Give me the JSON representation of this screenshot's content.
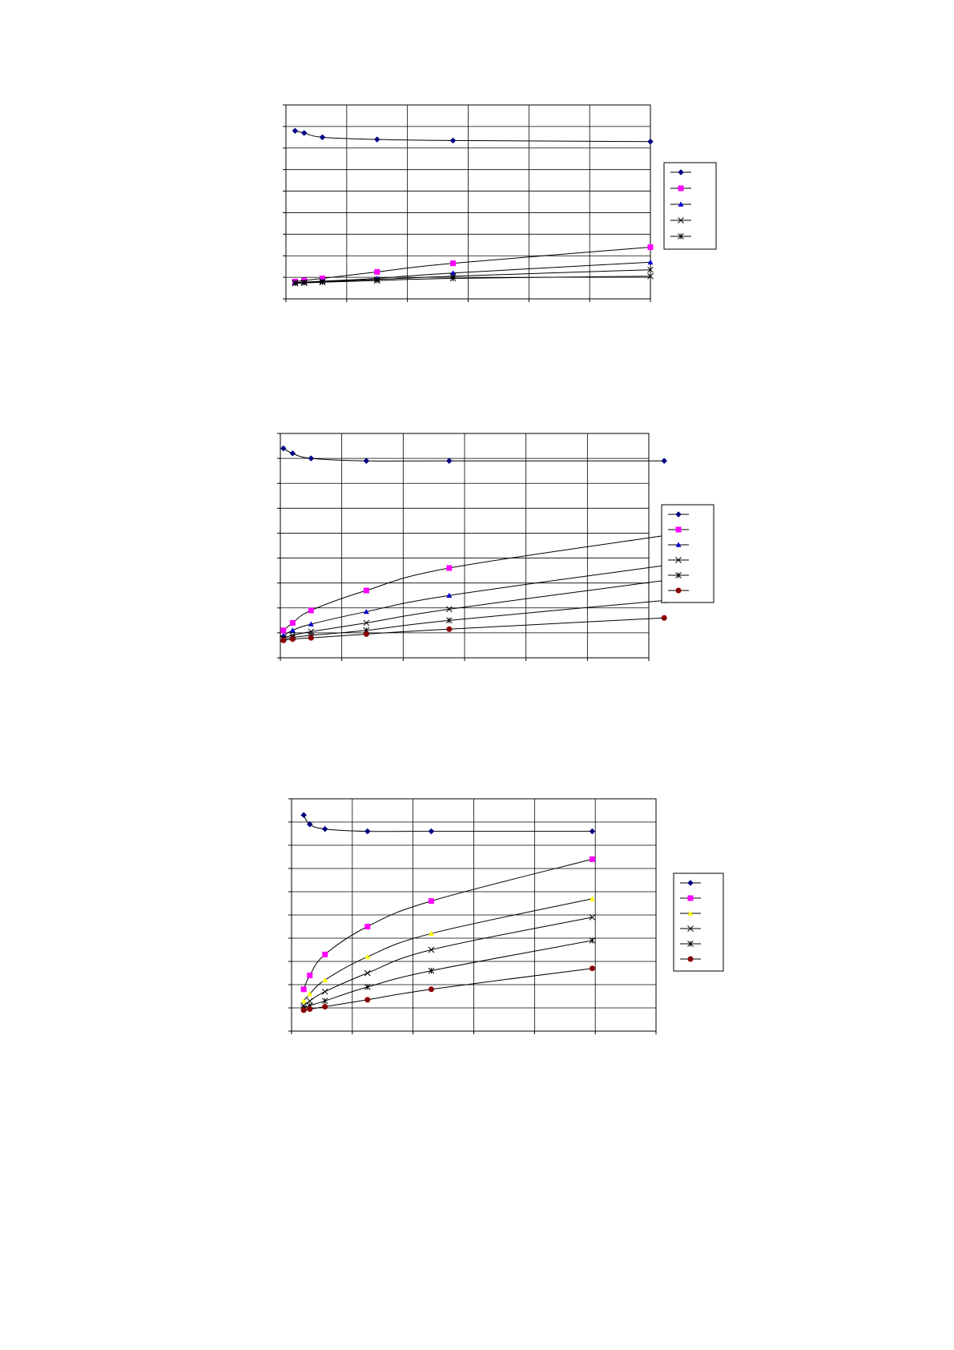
{
  "page": {
    "footer": ""
  },
  "chart_data": [
    {
      "type": "line",
      "title": "",
      "xlabel": "",
      "ylabel": "",
      "xlim": [
        0,
        120
      ],
      "ylim": [
        0,
        9
      ],
      "grid": true,
      "legend_position": "right",
      "series": [
        {
          "marker": "diamond",
          "color": "#000080",
          "x": [
            3,
            6,
            12,
            30,
            55,
            120
          ],
          "y": [
            7.8,
            7.7,
            7.5,
            7.4,
            7.35,
            7.3
          ]
        },
        {
          "marker": "square",
          "color": "#FF00FF",
          "x": [
            3,
            6,
            12,
            30,
            55,
            120
          ],
          "y": [
            0.8,
            0.85,
            0.95,
            1.25,
            1.65,
            2.4
          ]
        },
        {
          "marker": "triangle",
          "color": "#0000CD",
          "x": [
            3,
            6,
            12,
            30,
            55,
            120
          ],
          "y": [
            0.75,
            0.78,
            0.82,
            0.95,
            1.2,
            1.7
          ]
        },
        {
          "marker": "x",
          "color": "#000000",
          "x": [
            3,
            6,
            12,
            30,
            55,
            120
          ],
          "y": [
            0.75,
            0.77,
            0.8,
            0.9,
            1.05,
            1.35
          ]
        },
        {
          "marker": "star",
          "color": "#000000",
          "x": [
            3,
            6,
            12,
            30,
            55,
            120
          ],
          "y": [
            0.72,
            0.74,
            0.77,
            0.85,
            0.95,
            1.05
          ]
        }
      ]
    },
    {
      "type": "line",
      "title": "",
      "xlabel": "",
      "ylabel": "",
      "xlim": [
        0,
        120
      ],
      "ylim": [
        0,
        9
      ],
      "grid": true,
      "legend_position": "right",
      "series": [
        {
          "marker": "diamond",
          "color": "#000080",
          "x": [
            1,
            4,
            10,
            28,
            55,
            125
          ],
          "y": [
            8.4,
            8.2,
            8.0,
            7.9,
            7.9,
            7.9
          ]
        },
        {
          "marker": "square",
          "color": "#FF00FF",
          "x": [
            1,
            4,
            10,
            28,
            55,
            125
          ],
          "y": [
            1.1,
            1.4,
            1.9,
            2.7,
            3.6,
            4.9
          ]
        },
        {
          "marker": "triangle",
          "color": "#0000CD",
          "x": [
            1,
            4,
            10,
            28,
            55,
            125
          ],
          "y": [
            0.9,
            1.1,
            1.35,
            1.85,
            2.5,
            3.7
          ]
        },
        {
          "marker": "x",
          "color": "#000000",
          "x": [
            1,
            4,
            10,
            28,
            55,
            125
          ],
          "y": [
            0.8,
            0.9,
            1.05,
            1.4,
            1.95,
            3.1
          ]
        },
        {
          "marker": "star",
          "color": "#000000",
          "x": [
            1,
            4,
            10,
            28,
            55,
            125
          ],
          "y": [
            0.75,
            0.82,
            0.9,
            1.1,
            1.5,
            2.3
          ]
        },
        {
          "marker": "circle",
          "color": "#8B0000",
          "x": [
            1,
            4,
            10,
            28,
            55,
            125
          ],
          "y": [
            0.7,
            0.75,
            0.8,
            0.95,
            1.15,
            1.6
          ]
        }
      ]
    },
    {
      "type": "line",
      "title": "",
      "xlabel": "",
      "ylabel": "",
      "xlim": [
        0,
        120
      ],
      "ylim": [
        0,
        10
      ],
      "grid": true,
      "legend_position": "right",
      "series": [
        {
          "marker": "diamond",
          "color": "#000080",
          "x": [
            4,
            6,
            11,
            25,
            46,
            99
          ],
          "y": [
            9.3,
            8.9,
            8.7,
            8.6,
            8.6,
            8.6
          ]
        },
        {
          "marker": "square",
          "color": "#FF00FF",
          "x": [
            4,
            6,
            11,
            25,
            46,
            99
          ],
          "y": [
            1.8,
            2.4,
            3.3,
            4.5,
            5.6,
            7.4
          ]
        },
        {
          "marker": "triangle",
          "color": "#FFFF00",
          "x": [
            4,
            6,
            11,
            25,
            46,
            99
          ],
          "y": [
            1.3,
            1.6,
            2.2,
            3.2,
            4.2,
            5.7
          ]
        },
        {
          "marker": "x",
          "color": "#000000",
          "x": [
            4,
            6,
            11,
            25,
            46,
            99
          ],
          "y": [
            1.1,
            1.3,
            1.7,
            2.5,
            3.5,
            4.9
          ]
        },
        {
          "marker": "star",
          "color": "#000000",
          "x": [
            4,
            6,
            11,
            25,
            46,
            99
          ],
          "y": [
            1.0,
            1.1,
            1.3,
            1.9,
            2.6,
            3.9
          ]
        },
        {
          "marker": "circle",
          "color": "#8B0000",
          "x": [
            4,
            6,
            11,
            25,
            46,
            99
          ],
          "y": [
            0.9,
            0.95,
            1.05,
            1.35,
            1.8,
            2.7
          ]
        }
      ]
    }
  ]
}
